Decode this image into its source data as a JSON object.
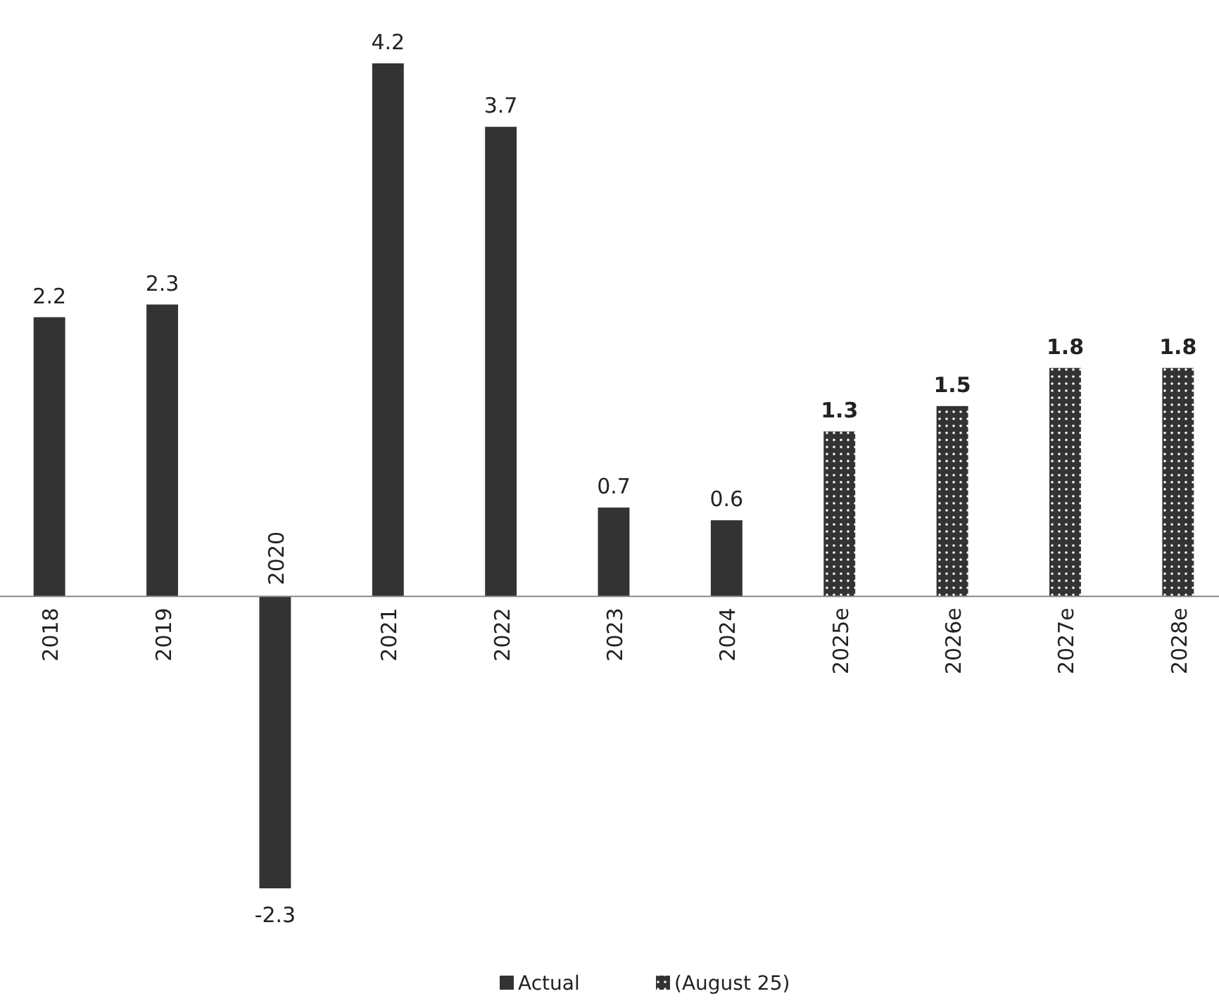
{
  "chart_data": {
    "type": "bar",
    "categories": [
      "2018",
      "2019",
      "2020",
      "2021",
      "2022",
      "2023",
      "2024",
      "2025e",
      "2026e",
      "2027e",
      "2028e"
    ],
    "series": [
      {
        "name": "Actual",
        "color": "#333333",
        "values": [
          2.2,
          2.3,
          -2.3,
          4.2,
          3.7,
          0.7,
          0.6,
          null,
          null,
          null,
          null
        ]
      },
      {
        "name": "(August 25)",
        "color": "#333333",
        "values": [
          null,
          null,
          null,
          null,
          null,
          null,
          null,
          1.3,
          1.5,
          1.8,
          1.8
        ]
      }
    ],
    "data_labels": true,
    "legend": "bottom"
  }
}
